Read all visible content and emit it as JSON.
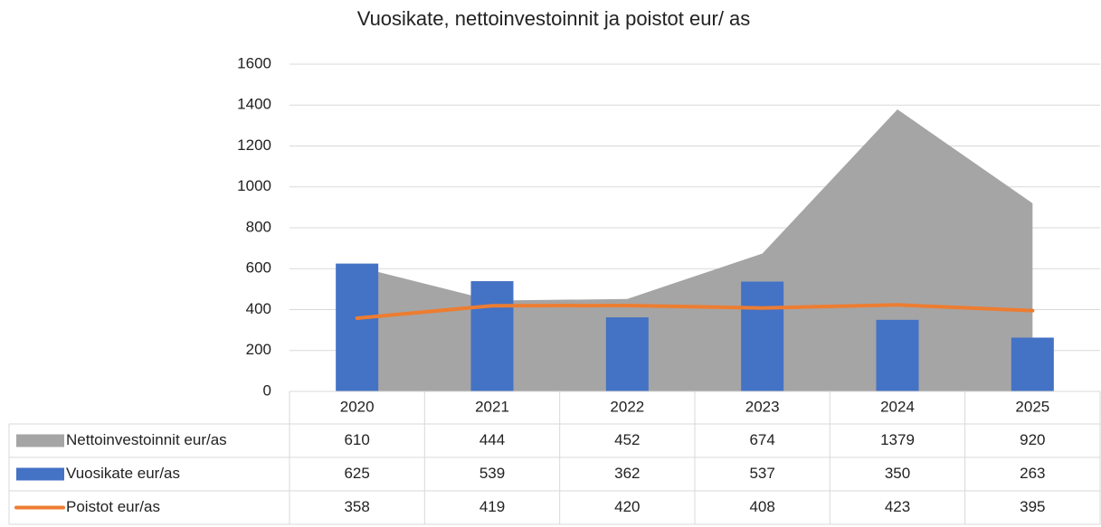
{
  "chart_data": {
    "type": "combo",
    "title": "Vuosikate, nettoinvestoinnit ja poistot eur/ as",
    "categories": [
      "2020",
      "2021",
      "2022",
      "2023",
      "2024",
      "2025"
    ],
    "series": [
      {
        "name": "Nettoinvestoinnit eur/as",
        "type": "area",
        "color": "#a5a5a5",
        "values": [
          610,
          444,
          452,
          674,
          1379,
          920
        ]
      },
      {
        "name": "Vuosikate eur/as",
        "type": "bar",
        "color": "#4472c4",
        "values": [
          625,
          539,
          362,
          537,
          350,
          263
        ]
      },
      {
        "name": "Poistot eur/as",
        "type": "line",
        "color": "#ed7d31",
        "values": [
          358,
          419,
          420,
          408,
          423,
          395
        ]
      }
    ],
    "ylim": [
      0,
      1600
    ],
    "yticks": [
      0,
      200,
      400,
      600,
      800,
      1000,
      1200,
      1400,
      1600
    ],
    "grid": true
  }
}
